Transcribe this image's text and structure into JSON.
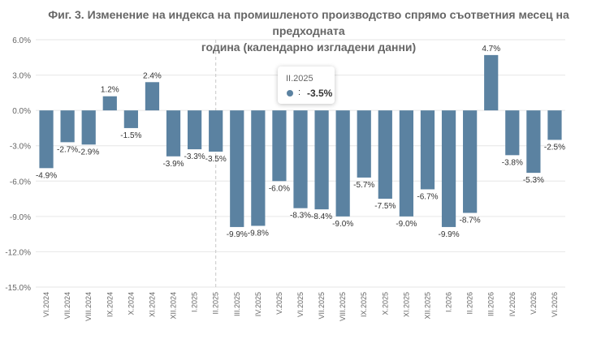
{
  "title": "Фиг. 3. Изменение на индекса на промишленото производство спрямо съответния месец на предходната година (календарно изгладени данни)",
  "title_line1": "Фиг. 3. Изменение на индекса на промишленото производство спрямо съответния месец на предходната",
  "title_line2": "година (календарно изгладени данни)",
  "colors": {
    "bar": "#5b82a1",
    "grid": "#e6e6e6",
    "text": "#666666"
  },
  "tooltip": {
    "category": "II.2025",
    "separator": ":",
    "value": "-3.5%"
  },
  "chart_data": {
    "type": "bar",
    "title": "Фиг. 3. Изменение на индекса на промишленото производство спрямо съответния месец на предходната година (календарно изгладени данни)",
    "xlabel": "",
    "ylabel": "",
    "ylim": [
      -15,
      6
    ],
    "yticks": [
      6,
      3,
      0,
      -3,
      -6,
      -9,
      -12,
      -15
    ],
    "ytick_labels": [
      "6.0%",
      "3.0%",
      "0.0%",
      "-3.0%",
      "-6.0%",
      "-9.0%",
      "-12.0%",
      "-15.0%"
    ],
    "grid": true,
    "legend": "none",
    "categories": [
      "VI.2024",
      "VII.2024",
      "VIII.2024",
      "IX.2024",
      "X.2024",
      "XI.2024",
      "XII.2024",
      "I.2025",
      "II.2025",
      "III.2025",
      "IV.2025",
      "V.2025",
      "VI.2025",
      "VII.2025",
      "VIII.2025",
      "IX.2025",
      "X.2025",
      "XI.2025",
      "XII.2025",
      "I.2026",
      "II.2026",
      "III.2026",
      "IV.2026",
      "V.2026",
      "VI.2026"
    ],
    "values": [
      -4.9,
      -2.7,
      -2.9,
      1.2,
      -1.5,
      2.4,
      -3.9,
      -3.3,
      -3.5,
      -9.9,
      -9.8,
      -6.0,
      -8.3,
      -8.4,
      -9.0,
      -5.7,
      -7.5,
      -9.0,
      -6.7,
      -9.9,
      -8.7,
      4.7,
      -3.8,
      -5.3,
      -2.5
    ],
    "data_labels": [
      "-4.9%",
      "-2.7%",
      "-2.9%",
      "1.2%",
      "-1.5%",
      "2.4%",
      "-3.9%",
      "-3.3%",
      "-3.5%",
      "-9.9%",
      "-9.8%",
      "-6.0%",
      "-8.3%",
      "-8.4%",
      "-9.0%",
      "-5.7%",
      "-7.5%",
      "-9.0%",
      "-6.7%",
      "-9.9%",
      "-8.7%",
      "4.7%",
      "-3.8%",
      "-5.3%",
      "-2.5%"
    ],
    "highlighted_category": "II.2025"
  }
}
